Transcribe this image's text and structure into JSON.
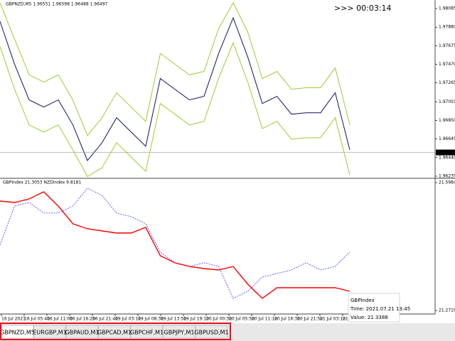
{
  "timer": ">>> 00:03:14",
  "chart_data": [
    {
      "type": "line",
      "title": "GBPNZD,M5  1.96551 1.96598 1.96488 1.96497",
      "ylim": [
        1.96219,
        1.9818
      ],
      "yticks": [
        1.98085,
        {
          "value": 1.9788,
          "label": "1.97880"
        },
        1.97675,
        {
          "value": 1.9747,
          "label": "1.97470"
        },
        1.97265,
        1.97055,
        {
          "value": 1.9685,
          "label": "1.96850"
        },
        1.96645,
        {
          "value": 1.9644,
          "label": "1.96440"
        },
        1.96235
      ],
      "last_price": 1.96497,
      "series": [
        {
          "color": "#9acd32",
          "values": [
            1.9815,
            1.97747,
            1.97353,
            1.97274,
            1.97353,
            1.97077,
            1.96683,
            1.9688,
            1.97156,
            1.96998,
            1.96841,
            1.97589,
            1.97471,
            1.97353,
            1.97392,
            1.97865,
            1.9815,
            1.97826,
            1.97313,
            1.97392,
            1.97195,
            1.97211,
            1.97211,
            1.97432,
            1.96801
          ]
        },
        {
          "color": "#9acd32",
          "values": [
            1.97668,
            1.97195,
            1.96801,
            1.96722,
            1.96801,
            1.96525,
            1.96231,
            1.96328,
            1.96604,
            1.96446,
            1.96289,
            1.97037,
            1.96919,
            1.96801,
            1.9684,
            1.97313,
            1.97707,
            1.97274,
            1.96761,
            1.9684,
            1.96643,
            1.96659,
            1.96659,
            1.9688,
            1.96249
          ]
        },
        {
          "color": "#101060",
          "values": [
            1.97944,
            1.97471,
            1.97077,
            1.96998,
            1.97077,
            1.96801,
            1.96407,
            1.96604,
            1.9688,
            1.96722,
            1.96565,
            1.97313,
            1.97195,
            1.97077,
            1.97116,
            1.97589,
            1.97983,
            1.9755,
            1.97037,
            1.97116,
            1.96919,
            1.96935,
            1.96935,
            1.97156,
            1.96525
          ]
        }
      ]
    },
    {
      "type": "line",
      "title": "GBPIndex 21.3053  NZDIndex 9.8181",
      "ylim": [
        21.2665,
        21.6075
      ],
      "yticks": [
        21.5984,
        21.2719
      ],
      "y2lim": [
        9.6973,
        9.8644
      ],
      "x_labels": [
        "16 Jul 2021",
        "16 Jul 05:40",
        "16 Jul 11:00",
        "16 Jul 16:20",
        "16 Jul 21:40",
        "19 Jul 03:10",
        "19 Jul 08:30",
        "19 Jul 13:50",
        "19 Jul 19:10",
        "20 Jul 00:30",
        "20 Jul 05:50",
        "20 Jul 11:10",
        "20 Jul 16:30",
        "20 Jul 21:50",
        "21 Jul 03:10",
        "21 Jul 08:30"
      ],
      "series": [
        {
          "name": "NZDIndex",
          "color": "#3a3aff",
          "axis": "y2",
          "values": [
            9.7818,
            9.8307,
            9.8351,
            9.8218,
            9.8218,
            9.8307,
            9.8529,
            9.844,
            9.8218,
            9.8173,
            9.8084,
            9.7729,
            9.7596,
            9.7551,
            9.7596,
            9.7551,
            9.7151,
            9.724,
            9.7418,
            9.7462,
            9.7507,
            9.7596,
            9.7507,
            9.7551,
            9.7729
          ]
        },
        {
          "name": "GBPIndex",
          "color": "#ff0000",
          "values": [
            21.5512,
            21.5476,
            21.5567,
            21.5748,
            21.5385,
            21.4932,
            21.4805,
            21.475,
            21.4696,
            21.4696,
            21.4841,
            21.4116,
            21.3934,
            21.3843,
            21.3789,
            21.3753,
            21.3843,
            21.339,
            21.3027,
            21.3299,
            21.3299,
            21.3299,
            21.3299,
            21.3299,
            21.3209
          ]
        }
      ],
      "tooltip": {
        "title": "GBPIndex",
        "time": "Time: 2021.07.21 13:45",
        "value": "Value: 21.3388"
      }
    }
  ],
  "tabs": [
    "GBPNZD,M5",
    "EURGBP,M1",
    "GBPAUD,M1",
    "GBPCAD,M1",
    "GBPCHF,M1",
    "GBPJPY,M1",
    "GBPUSD,M1"
  ]
}
